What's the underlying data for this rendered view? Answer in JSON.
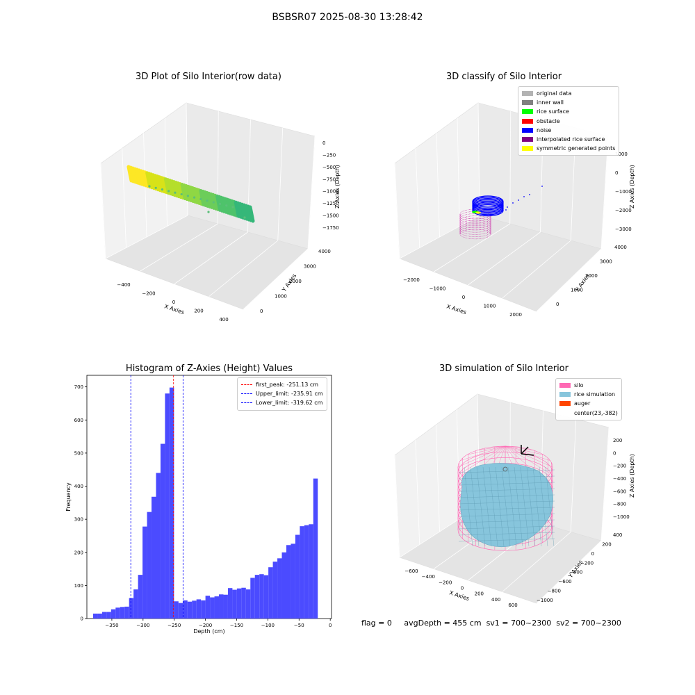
{
  "figure": {
    "suptitle": "BSBSR07 2025-08-30 13:28:42",
    "footer": {
      "flag": "flag = 0",
      "avg_depth": "avgDepth = 455 cm",
      "sv1": "sv1 = 700~2300",
      "sv2": "sv2 = 700~2300"
    }
  },
  "colors": {
    "hist_bar": "#4b4bff",
    "first_peak": "#ff0000",
    "limits": "#0000ff",
    "pane": "#f2f2f2",
    "silo": "#ff69b4",
    "rice": "#87c5dc",
    "auger": "#ff4500"
  },
  "chart_data": [
    {
      "type": "scatter",
      "title": "3D Plot of Silo Interior(row data)",
      "xlabel": "X Axies",
      "ylabel": "Y Axies",
      "zlabel": "Z Axies (Depth)",
      "xticks": [
        "−400",
        "−200",
        "0",
        "200",
        "400"
      ],
      "yticks": [
        "0",
        "1000",
        "2000",
        "3000",
        "4000"
      ],
      "zticks": [
        "0",
        "−250",
        "−500",
        "−750",
        "−1000",
        "−1250",
        "−1500",
        "−1750"
      ],
      "colormap": "viridis"
    },
    {
      "type": "scatter",
      "title": "3D classify of Silo Interior",
      "xlabel": "X Axies",
      "ylabel": "Y Axies",
      "zlabel": "Z Axies (Depth)",
      "xticks": [
        "−2000",
        "−1000",
        "0",
        "1000",
        "2000"
      ],
      "yticks": [
        "0",
        "1000",
        "2000",
        "3000",
        "4000"
      ],
      "zticks": [
        "1000",
        "0",
        "−1000",
        "−2000",
        "−3000"
      ],
      "legend_position": "top-right",
      "legend": [
        {
          "label": "original data",
          "color": "#b3b3b3"
        },
        {
          "label": "inner wall",
          "color": "#808080"
        },
        {
          "label": "rice surface",
          "color": "#00ff00"
        },
        {
          "label": "obstacle",
          "color": "#ff0000"
        },
        {
          "label": "noise",
          "color": "#0000ff"
        },
        {
          "label": "interpolated rice surface",
          "color": "#800080"
        },
        {
          "label": "symmetric generated points",
          "color": "#ffff00"
        }
      ]
    },
    {
      "type": "bar",
      "title": "Histogram of Z-Axies (Height) Values",
      "xlabel": "Depth (cm)",
      "ylabel": "Frequency",
      "xlim": [
        -390,
        2
      ],
      "ylim": [
        0,
        735
      ],
      "xticks": [
        -350,
        -300,
        -250,
        -200,
        -150,
        -100,
        -50,
        0
      ],
      "yticks": [
        0,
        100,
        200,
        300,
        400,
        500,
        600,
        700
      ],
      "xtick_labels": [
        "−350",
        "−300",
        "−250",
        "−200",
        "−150",
        "−100",
        "−50",
        "0"
      ],
      "bin_edges": [
        -380.0,
        -372.8,
        -365.6,
        -358.4,
        -351.2,
        -344.0,
        -336.8,
        -329.6,
        -322.4,
        -315.2,
        -308.0,
        -300.8,
        -293.6,
        -286.4,
        -279.2,
        -272.0,
        -264.8,
        -257.6,
        -250.4,
        -243.2,
        -236.0,
        -228.8,
        -221.6,
        -214.4,
        -207.2,
        -200.0,
        -192.8,
        -185.6,
        -178.4,
        -171.2,
        -164.0,
        -156.8,
        -149.6,
        -142.4,
        -135.2,
        -128.0,
        -120.8,
        -113.6,
        -106.4,
        -99.2,
        -92.0,
        -84.8,
        -77.6,
        -70.4,
        -63.2,
        -56.0,
        -48.8,
        -41.6,
        -34.4,
        -27.2,
        -20.0,
        -12.8,
        -5.6,
        1.6
      ],
      "counts": [
        15,
        15,
        20,
        20,
        28,
        33,
        35,
        36,
        62,
        88,
        132,
        278,
        322,
        368,
        440,
        528,
        680,
        698,
        52,
        47,
        55,
        51,
        54,
        58,
        55,
        69,
        64,
        67,
        73,
        72,
        92,
        87,
        91,
        93,
        88,
        123,
        132,
        134,
        131,
        155,
        172,
        182,
        200,
        222,
        226,
        253,
        279,
        282,
        285,
        423,
        0,
        0,
        0
      ],
      "vlines": [
        {
          "name": "first_peak",
          "label": "first_peak: -251.13 cm",
          "x": -251.13,
          "color": "#ff0000"
        },
        {
          "name": "upper_limit",
          "label": "Upper_limit: -235.91 cm",
          "x": -235.91,
          "color": "#0000ff"
        },
        {
          "name": "lower_limit",
          "label": "Lower_limit: -319.62 cm",
          "x": -319.62,
          "color": "#0000ff"
        }
      ],
      "legend_position": "top-right"
    },
    {
      "type": "scatter",
      "title": "3D simulation of Silo Interior",
      "xlabel": "X Axies",
      "ylabel": "Y Axies",
      "zlabel": "Z Axies (Depth)",
      "xticks": [
        "−600",
        "−400",
        "−200",
        "0",
        "200",
        "400",
        "600"
      ],
      "yticks": [
        "−1000",
        "−800",
        "−600",
        "−400",
        "−200",
        "0",
        "200",
        "400"
      ],
      "zticks": [
        "200",
        "0",
        "−200",
        "−400",
        "−600",
        "−800",
        "−1000"
      ],
      "legend_position": "top-right",
      "legend": [
        {
          "label": "silo",
          "color": "#ff69b4"
        },
        {
          "label": "rice simulation",
          "color": "#87c5dc"
        },
        {
          "label": "auger",
          "color": "#ff4500"
        },
        {
          "label": "center(23,-382)",
          "color": ""
        }
      ]
    }
  ]
}
